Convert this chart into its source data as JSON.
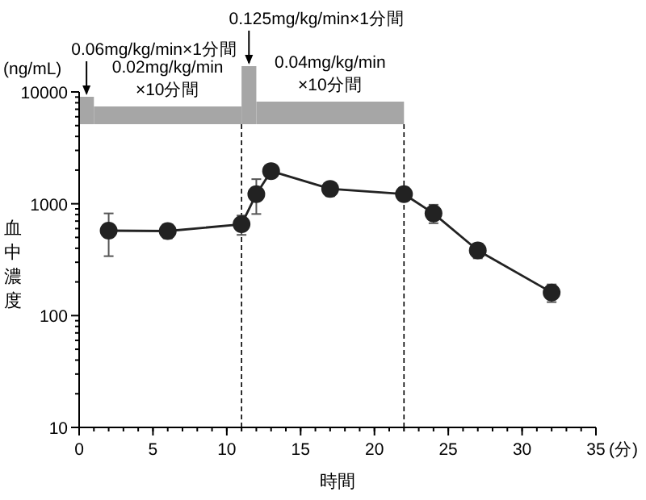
{
  "chart_data": {
    "type": "line",
    "x": [
      2,
      6,
      11,
      12,
      13,
      17,
      22,
      24,
      27,
      32
    ],
    "values": [
      575,
      570,
      656,
      1220,
      1960,
      1360,
      1220,
      820,
      383,
      161
    ],
    "errors": [
      [
        340,
        820
      ],
      [
        490,
        650
      ],
      [
        527,
        785
      ],
      [
        810,
        1660
      ],
      [
        1760,
        2160
      ],
      [
        1170,
        1520
      ],
      [
        1090,
        1390
      ],
      [
        670,
        980
      ],
      [
        325,
        440
      ],
      [
        132,
        190
      ]
    ],
    "color": "#222222",
    "marker": "circle",
    "log": true,
    "xlim": [
      0,
      35
    ],
    "xticks": [
      0,
      5,
      10,
      15,
      20,
      25,
      30,
      35
    ],
    "ylim": [
      10,
      10000
    ],
    "yticks": [
      10,
      100,
      1000,
      10000
    ],
    "xlabel": "時間",
    "ylabel": "血中濃度",
    "annotations": [
      "(ng/mL)",
      "(分)"
    ],
    "bands": [
      {
        "axis": "x",
        "from": 0,
        "to": 1,
        "label": "0.06mg/kg/min×1分間",
        "color": "#a6a6a6"
      },
      {
        "axis": "x",
        "from": 1,
        "to": 11,
        "label": "0.02mg/kg/min\n×10分間",
        "color": "#a6a6a6"
      },
      {
        "axis": "x",
        "from": 11,
        "to": 12,
        "label": "0.125mg/kg/min×1分間",
        "color": "#a6a6a6"
      },
      {
        "axis": "x",
        "from": 12,
        "to": 22,
        "label": "0.04mg/kg/min\n×10分間",
        "color": "#a6a6a6"
      }
    ],
    "ref_lines": [
      {
        "axis": "x",
        "value": 11,
        "line_style": "dashed"
      },
      {
        "axis": "x",
        "value": 22,
        "line_style": "dashed"
      }
    ]
  }
}
